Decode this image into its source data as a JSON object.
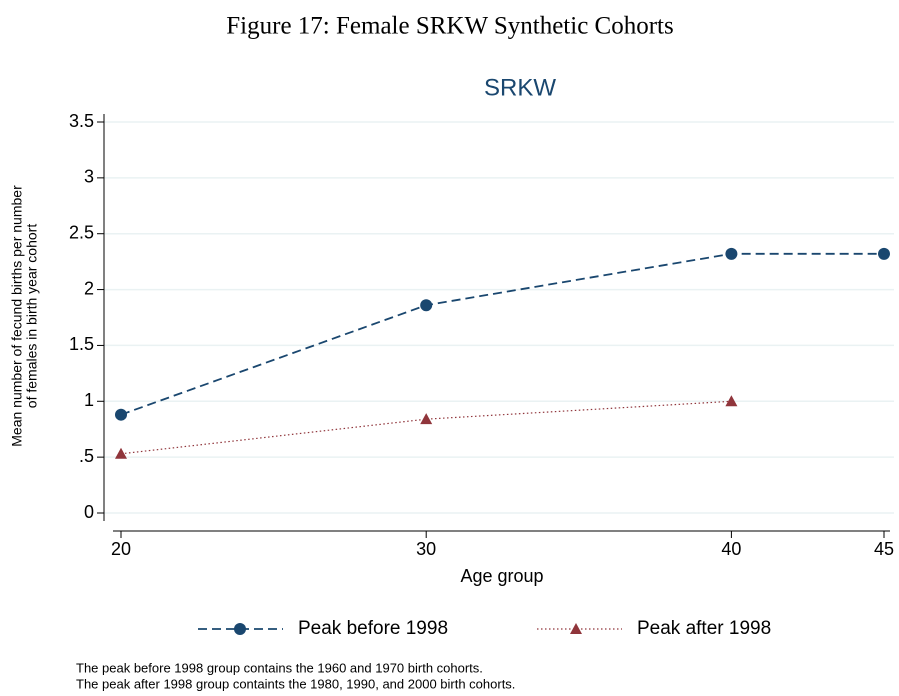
{
  "chart_data": {
    "type": "line",
    "caption": "Figure 17: Female SRKW Synthetic Cohorts",
    "title": "SRKW",
    "xlabel": "Age group",
    "ylabel": [
      "Mean number of fecund births per number",
      "of females in birth year cohort"
    ],
    "x": [
      20,
      30,
      40,
      45
    ],
    "series": [
      {
        "name": "Peak before 1998",
        "color": "#1a476f",
        "values": [
          0.88,
          1.86,
          2.32,
          2.32
        ]
      },
      {
        "name": "Peak after 1998",
        "color": "#90353b",
        "values": [
          0.53,
          0.84,
          1.0,
          null
        ]
      }
    ],
    "xlim": [
      20,
      45
    ],
    "xticks": [
      20,
      30,
      40,
      45
    ],
    "ylim": [
      0,
      3.5
    ],
    "yticks": [
      0,
      {
        "value": 0.5,
        "label": ".5"
      },
      1,
      1.5,
      2,
      2.5,
      3,
      3.5
    ],
    "grid": true,
    "notes": [
      "The peak before 1998 group contains the 1960 and 1970 birth cohorts.",
      "The peak after 1998 group containts the 1980, 1990, and 2000 birth cohorts."
    ]
  }
}
